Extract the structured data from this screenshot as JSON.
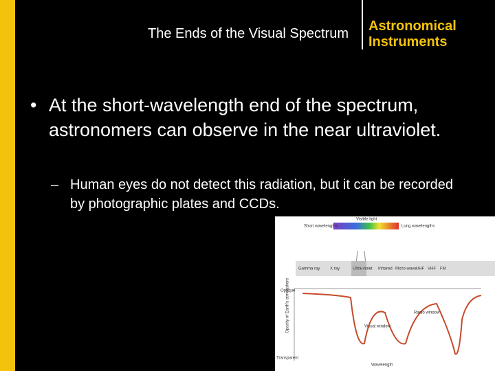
{
  "header": {
    "title": "The Ends of the Visual Spectrum",
    "section": "Astronomical Instruments"
  },
  "body": {
    "bullet": {
      "marker": "•",
      "text": "At the short-wavelength end of the spectrum, astronomers can observe in the near ultraviolet."
    },
    "sub_bullet": {
      "marker": "–",
      "text": "Human eyes do not detect this radiation, but it can be recorded by photographic plates and CCDs."
    }
  },
  "figure": {
    "visible_label": "Visible light",
    "short_label": "Short wavelengths",
    "long_label": "Long wavelengths",
    "bands": [
      "Gamma ray",
      "X ray",
      "Ultra-violet",
      "Infrared",
      "Micro-wave",
      "UHF",
      "VHF",
      "FM"
    ],
    "windows": [
      "Visual window",
      "Radio window"
    ],
    "y_axis": "Opacity of Earth's atmosphere",
    "top_label": "Opaque",
    "bottom_label": "Transparent",
    "x_axis": "Wavelength"
  }
}
